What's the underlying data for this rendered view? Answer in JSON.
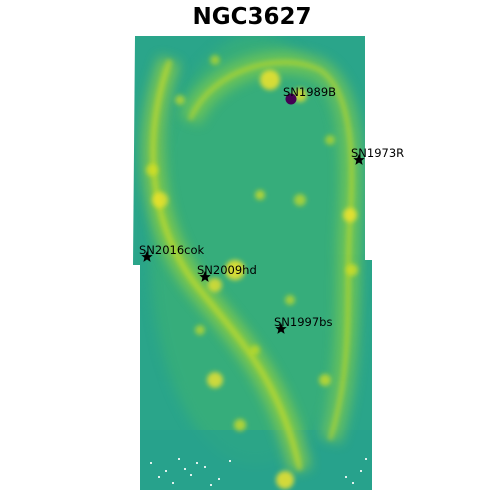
{
  "title": "NGC3627",
  "colors": {
    "background": "#ffffff",
    "map_low": "#2a9d8f",
    "map_mid": "#35b779",
    "map_high": "#fde725",
    "marker_circle": "#440154",
    "marker_star": "#000000"
  },
  "markers": [
    {
      "id": "sn1989b",
      "label": "SN1989B",
      "shape": "circle",
      "icon": "circle-marker-icon"
    },
    {
      "id": "sn1973r",
      "label": "SN1973R",
      "shape": "star",
      "icon": "star-marker-icon"
    },
    {
      "id": "sn2016cok",
      "label": "SN2016cok",
      "shape": "star",
      "icon": "star-marker-icon"
    },
    {
      "id": "sn2009hd",
      "label": "SN2009hd",
      "shape": "star",
      "icon": "star-marker-icon"
    },
    {
      "id": "sn1997bs",
      "label": "SN1997bs",
      "shape": "star",
      "icon": "star-marker-icon"
    }
  ]
}
